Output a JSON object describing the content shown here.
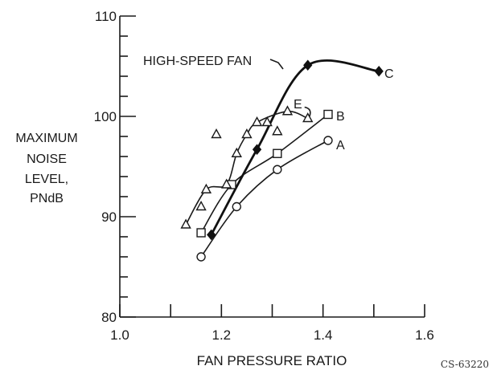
{
  "chart_data": {
    "type": "line",
    "title": "",
    "xlabel": "FAN PRESSURE RATIO",
    "ylabel": [
      "MAXIMUM",
      "NOISE",
      "LEVEL,",
      "PNdB"
    ],
    "xlim": [
      1.0,
      1.6
    ],
    "ylim": [
      80,
      110
    ],
    "x_ticks": [
      "1.0",
      "1.2",
      "1.4",
      "1.6"
    ],
    "y_ticks": [
      "80",
      "90",
      "100",
      "110"
    ],
    "grid": false,
    "figure_code": "CS-63220",
    "series": [
      {
        "name": "A",
        "marker": "circle",
        "x": [
          1.16,
          1.23,
          1.31,
          1.41
        ],
        "y": [
          86.0,
          91.0,
          94.7,
          97.6
        ]
      },
      {
        "name": "B",
        "marker": "square",
        "x": [
          1.16,
          1.22,
          1.31,
          1.41
        ],
        "y": [
          88.4,
          93.2,
          96.3,
          100.2
        ]
      },
      {
        "name": "C",
        "marker": "diamond-filled",
        "label": "HIGH-SPEED FAN",
        "x": [
          1.18,
          1.27,
          1.37,
          1.51
        ],
        "y": [
          88.2,
          96.7,
          105.1,
          104.5
        ]
      },
      {
        "name": "E",
        "marker": "triangle",
        "x": [
          1.13,
          1.17,
          1.21,
          1.23,
          1.25,
          1.27,
          1.33,
          1.37
        ],
        "y": [
          89.2,
          92.7,
          93.2,
          96.3,
          98.2,
          99.4,
          100.5,
          99.8
        ]
      }
    ],
    "extra_points": [
      {
        "marker": "triangle",
        "x": [
          1.16,
          1.19,
          1.29,
          1.31
        ],
        "y": [
          91.0,
          98.2,
          99.4,
          98.5
        ]
      }
    ]
  }
}
